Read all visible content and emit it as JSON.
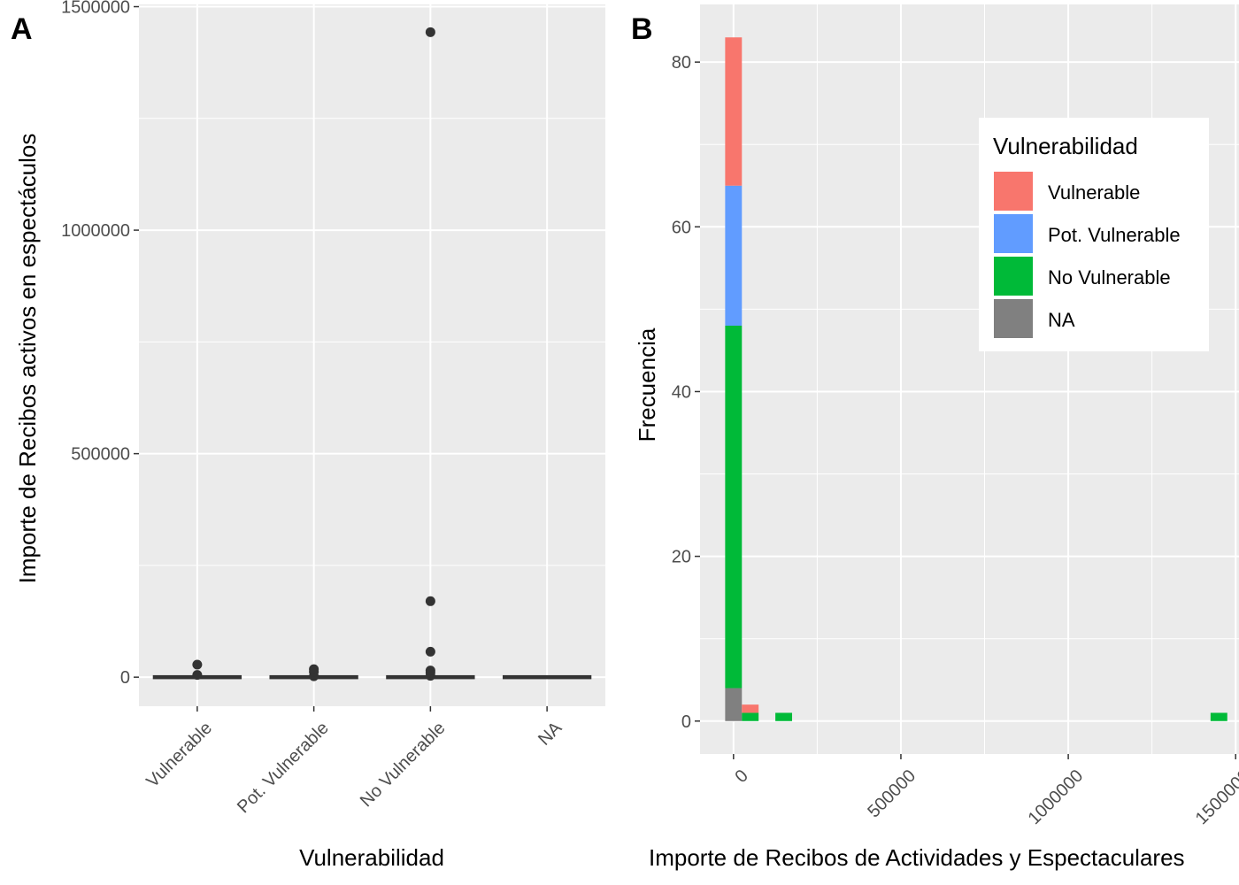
{
  "panels": {
    "a": {
      "tag": "A"
    },
    "b": {
      "tag": "B"
    }
  },
  "chart_data": [
    {
      "type": "boxplot",
      "categories": [
        "Vulnerable",
        "Pot. Vulnerable",
        "No Vulnerable",
        "NA"
      ],
      "xlabel": "Vulnerabilidad",
      "ylabel": "Importe de Recibos activos en espectáculos",
      "ylim": [
        -65000,
        1505000
      ],
      "yticks": [
        0,
        500000,
        1000000,
        1500000
      ],
      "ytick_labels": [
        "0",
        "500000",
        "1000000",
        "1500000"
      ],
      "grid": true,
      "boxes": [
        {
          "category": "Vulnerable",
          "median": 0,
          "q1": 0,
          "q3": 0,
          "outliers": [
            5000,
            28000
          ]
        },
        {
          "category": "Pot. Vulnerable",
          "median": 0,
          "q1": 0,
          "q3": 0,
          "outliers": [
            2000,
            12000,
            18000
          ]
        },
        {
          "category": "No Vulnerable",
          "median": 0,
          "q1": 0,
          "q3": 0,
          "outliers": [
            3000,
            10000,
            15000,
            57000,
            170000,
            1443000
          ]
        },
        {
          "category": "NA",
          "median": 0,
          "q1": 0,
          "q3": 0,
          "outliers": []
        }
      ]
    },
    {
      "type": "histogram",
      "stacked": true,
      "xlabel": "Importe de Recibos de Actividades y Espectaculares",
      "ylabel": "Frecuencia",
      "xlim": [
        -100000,
        1510000
      ],
      "ylim": [
        -4,
        87
      ],
      "xticks": [
        0,
        500000,
        1000000,
        1500000
      ],
      "xtick_labels": [
        "0",
        "500000",
        "1000000",
        "1500000"
      ],
      "yticks": [
        0,
        20,
        40,
        60,
        80
      ],
      "ytick_labels": [
        "0",
        "20",
        "40",
        "60",
        "80"
      ],
      "bin_width": 50000,
      "legend": {
        "title": "Vulnerabilidad",
        "position": "top-right",
        "entries": [
          {
            "label": "Vulnerable",
            "color": "#F8766D"
          },
          {
            "label": "Pot. Vulnerable",
            "color": "#619CFF"
          },
          {
            "label": "No Vulnerable",
            "color": "#00BA38"
          },
          {
            "label": "NA",
            "color": "#808080"
          }
        ]
      },
      "bins": [
        {
          "x_center": 0,
          "counts": {
            "NA": 4,
            "No Vulnerable": 44,
            "Pot. Vulnerable": 17,
            "Vulnerable": 18
          }
        },
        {
          "x_center": 50000,
          "counts": {
            "NA": 0,
            "No Vulnerable": 1,
            "Pot. Vulnerable": 0,
            "Vulnerable": 1
          }
        },
        {
          "x_center": 150000,
          "counts": {
            "NA": 0,
            "No Vulnerable": 1,
            "Pot. Vulnerable": 0,
            "Vulnerable": 0
          }
        },
        {
          "x_center": 1450000,
          "counts": {
            "NA": 0,
            "No Vulnerable": 1,
            "Pot. Vulnerable": 0,
            "Vulnerable": 0
          }
        }
      ]
    }
  ]
}
